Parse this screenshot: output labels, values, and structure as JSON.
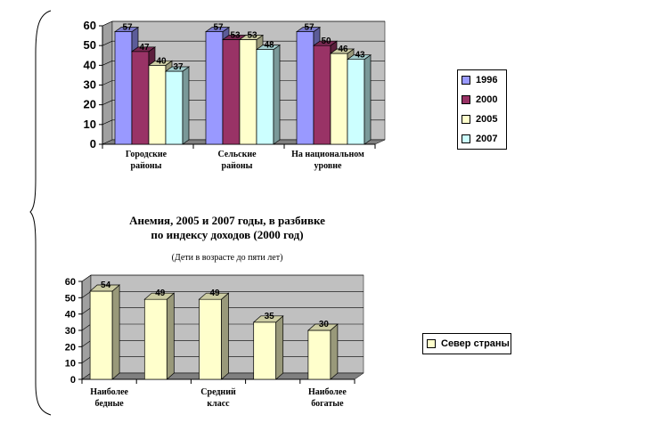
{
  "colors": {
    "s1996": "#9999ff",
    "s2000": "#993366",
    "s2005": "#ffffcc",
    "s2007": "#ccffff",
    "wall": "#c0c0c0",
    "floor": "#808080"
  },
  "chart_data": [
    {
      "type": "bar",
      "title": "",
      "categories": [
        "Городские районы",
        "Сельские районы",
        "На национальном уровне"
      ],
      "category_lines": [
        [
          "Городские",
          "районы"
        ],
        [
          "Сельские",
          "районы"
        ],
        [
          "На национальном",
          "уровне"
        ]
      ],
      "series": [
        {
          "name": "1996",
          "values": [
            57,
            57,
            57
          ]
        },
        {
          "name": "2000",
          "values": [
            47,
            53,
            50
          ]
        },
        {
          "name": "2005",
          "values": [
            40,
            53,
            46
          ]
        },
        {
          "name": "2007",
          "values": [
            37,
            48,
            43
          ]
        }
      ],
      "ylim": [
        0,
        60
      ],
      "yticks": [
        0,
        10,
        20,
        30,
        40,
        50,
        60
      ],
      "grid": true,
      "legend": "right"
    },
    {
      "type": "bar",
      "title": "Анемия, 2005 и 2007 годы, в разбивке по индексу доходов (2000 год)",
      "title_lines": [
        "Анемия, 2005 и 2007 годы, в разбивке",
        "по индексу доходов (2000 год)"
      ],
      "subtitle": "(Дети в возрасте до пяти лет)",
      "categories": [
        "1",
        "2",
        "3",
        "4",
        "5"
      ],
      "category_labels": [
        [
          "Наиболее",
          "бедные"
        ],
        [],
        [
          "Средний",
          "класс"
        ],
        [],
        [
          "Наиболее",
          "богатые"
        ]
      ],
      "series": [
        {
          "name": "Север страны",
          "values": [
            54,
            49,
            49,
            35,
            30
          ]
        }
      ],
      "ylim": [
        0,
        60
      ],
      "yticks": [
        0,
        10,
        20,
        30,
        40,
        50,
        60
      ],
      "grid": true,
      "legend": "right"
    }
  ]
}
